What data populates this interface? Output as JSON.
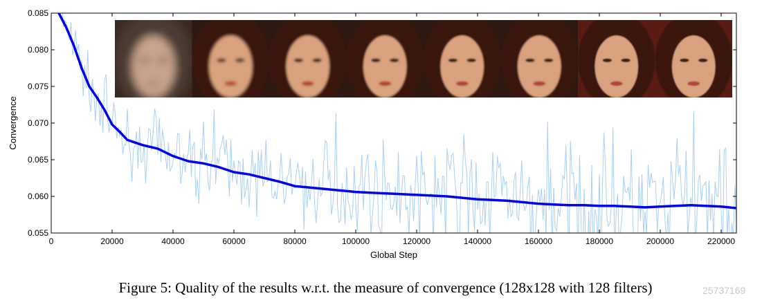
{
  "chart_data": {
    "type": "line",
    "xlabel": "Global Step",
    "ylabel": "Convergence",
    "xlim": [
      0,
      225000
    ],
    "ylim": [
      0.055,
      0.085
    ],
    "x_ticks": [
      0,
      20000,
      40000,
      60000,
      80000,
      100000,
      120000,
      140000,
      160000,
      180000,
      200000,
      220000
    ],
    "y_ticks": [
      "0.055",
      "0.060",
      "0.065",
      "0.070",
      "0.075",
      "0.080",
      "0.085"
    ],
    "grid": false,
    "series": [
      {
        "role": "smoothed",
        "color": "#0000ee",
        "x": [
          0,
          2500,
          5000,
          7500,
          10000,
          12500,
          15000,
          17500,
          20000,
          22500,
          25000,
          30000,
          35000,
          40000,
          45000,
          50000,
          55000,
          60000,
          65000,
          70000,
          75000,
          80000,
          85000,
          90000,
          95000,
          100000,
          105000,
          110000,
          115000,
          120000,
          125000,
          130000,
          135000,
          140000,
          145000,
          150000,
          155000,
          160000,
          165000,
          170000,
          175000,
          180000,
          185000,
          190000,
          195000,
          200000,
          205000,
          210000,
          215000,
          220000,
          225000
        ],
        "y": [
          0.0875,
          0.085,
          0.083,
          0.0805,
          0.0775,
          0.075,
          0.0735,
          0.0718,
          0.0698,
          0.0688,
          0.0677,
          0.067,
          0.0665,
          0.0655,
          0.0648,
          0.0645,
          0.064,
          0.0633,
          0.063,
          0.0625,
          0.062,
          0.0614,
          0.0612,
          0.061,
          0.0608,
          0.0606,
          0.0605,
          0.0604,
          0.0603,
          0.0602,
          0.0601,
          0.06,
          0.0598,
          0.0596,
          0.0595,
          0.0594,
          0.0592,
          0.059,
          0.0589,
          0.0588,
          0.0588,
          0.0587,
          0.0587,
          0.0586,
          0.0585,
          0.0586,
          0.0587,
          0.0588,
          0.0587,
          0.0586,
          0.0584
        ]
      },
      {
        "role": "raw",
        "color": "#a9d0f5",
        "seed": 7,
        "sample_step": 500,
        "noise_amplitude_start": 0.0018,
        "noise_amplitude_end": 0.0045
      }
    ],
    "inset_images": [
      {
        "name": "face-sample-1",
        "blur": 6
      },
      {
        "name": "face-sample-2",
        "blur": 2
      },
      {
        "name": "face-sample-3",
        "blur": 1.5
      },
      {
        "name": "face-sample-4",
        "blur": 1.2
      },
      {
        "name": "face-sample-5",
        "blur": 1
      },
      {
        "name": "face-sample-6",
        "blur": 1
      },
      {
        "name": "face-sample-7",
        "blur": 0.8
      },
      {
        "name": "face-sample-8",
        "blur": 0.8
      }
    ]
  },
  "caption": "Figure 5: Quality of the results w.r.t. the measure of convergence (128x128 with 128 filters)",
  "watermark": "25737169"
}
